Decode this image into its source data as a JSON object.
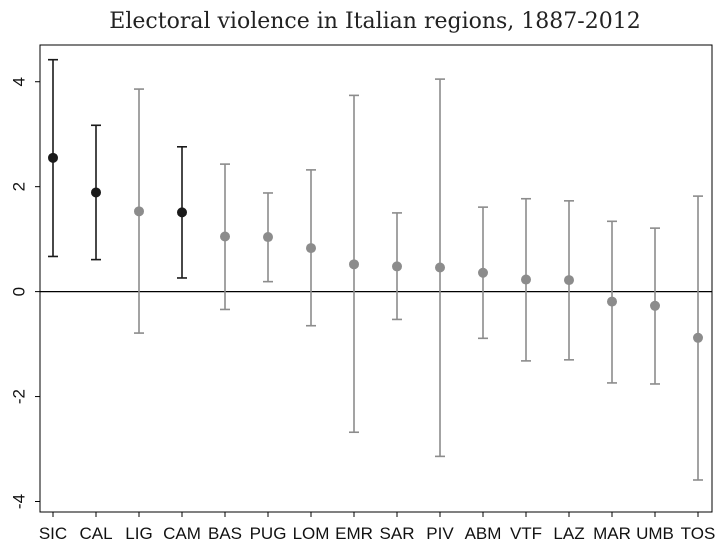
{
  "chart_data": {
    "type": "scatter",
    "title": "Electoral violence in Italian regions, 1887-2012",
    "xlabel": "",
    "ylabel": "",
    "ylim": [
      -4.2,
      4.7
    ],
    "yticks": [
      -4,
      -2,
      0,
      2,
      4
    ],
    "reference_line": 0,
    "grid": false,
    "categories": [
      "SIC",
      "CAL",
      "LIG",
      "CAM",
      "BAS",
      "PUG",
      "LOM",
      "EMR",
      "SAR",
      "PIV",
      "ABM",
      "VTF",
      "LAZ",
      "MAR",
      "UMB",
      "TOS"
    ],
    "values": [
      2.55,
      1.89,
      1.53,
      1.51,
      1.05,
      1.04,
      0.83,
      0.52,
      0.48,
      0.46,
      0.36,
      0.23,
      0.22,
      -0.19,
      -0.27,
      -0.88
    ],
    "lower": [
      0.67,
      0.61,
      -0.79,
      0.26,
      -0.34,
      0.19,
      -0.65,
      -2.68,
      -0.53,
      -3.14,
      -0.89,
      -1.32,
      -1.3,
      -1.74,
      -1.76,
      -3.59
    ],
    "upper": [
      4.42,
      3.17,
      3.86,
      2.76,
      2.43,
      1.88,
      2.32,
      3.74,
      1.5,
      4.05,
      1.61,
      1.77,
      1.73,
      1.34,
      1.21,
      1.82
    ],
    "significant": [
      true,
      true,
      false,
      true,
      false,
      false,
      false,
      false,
      false,
      false,
      false,
      false,
      false,
      false,
      false,
      false
    ],
    "colors": {
      "significant": "#1a1a1a",
      "not_significant": "#8c8c8c",
      "axis": "#000000"
    }
  }
}
